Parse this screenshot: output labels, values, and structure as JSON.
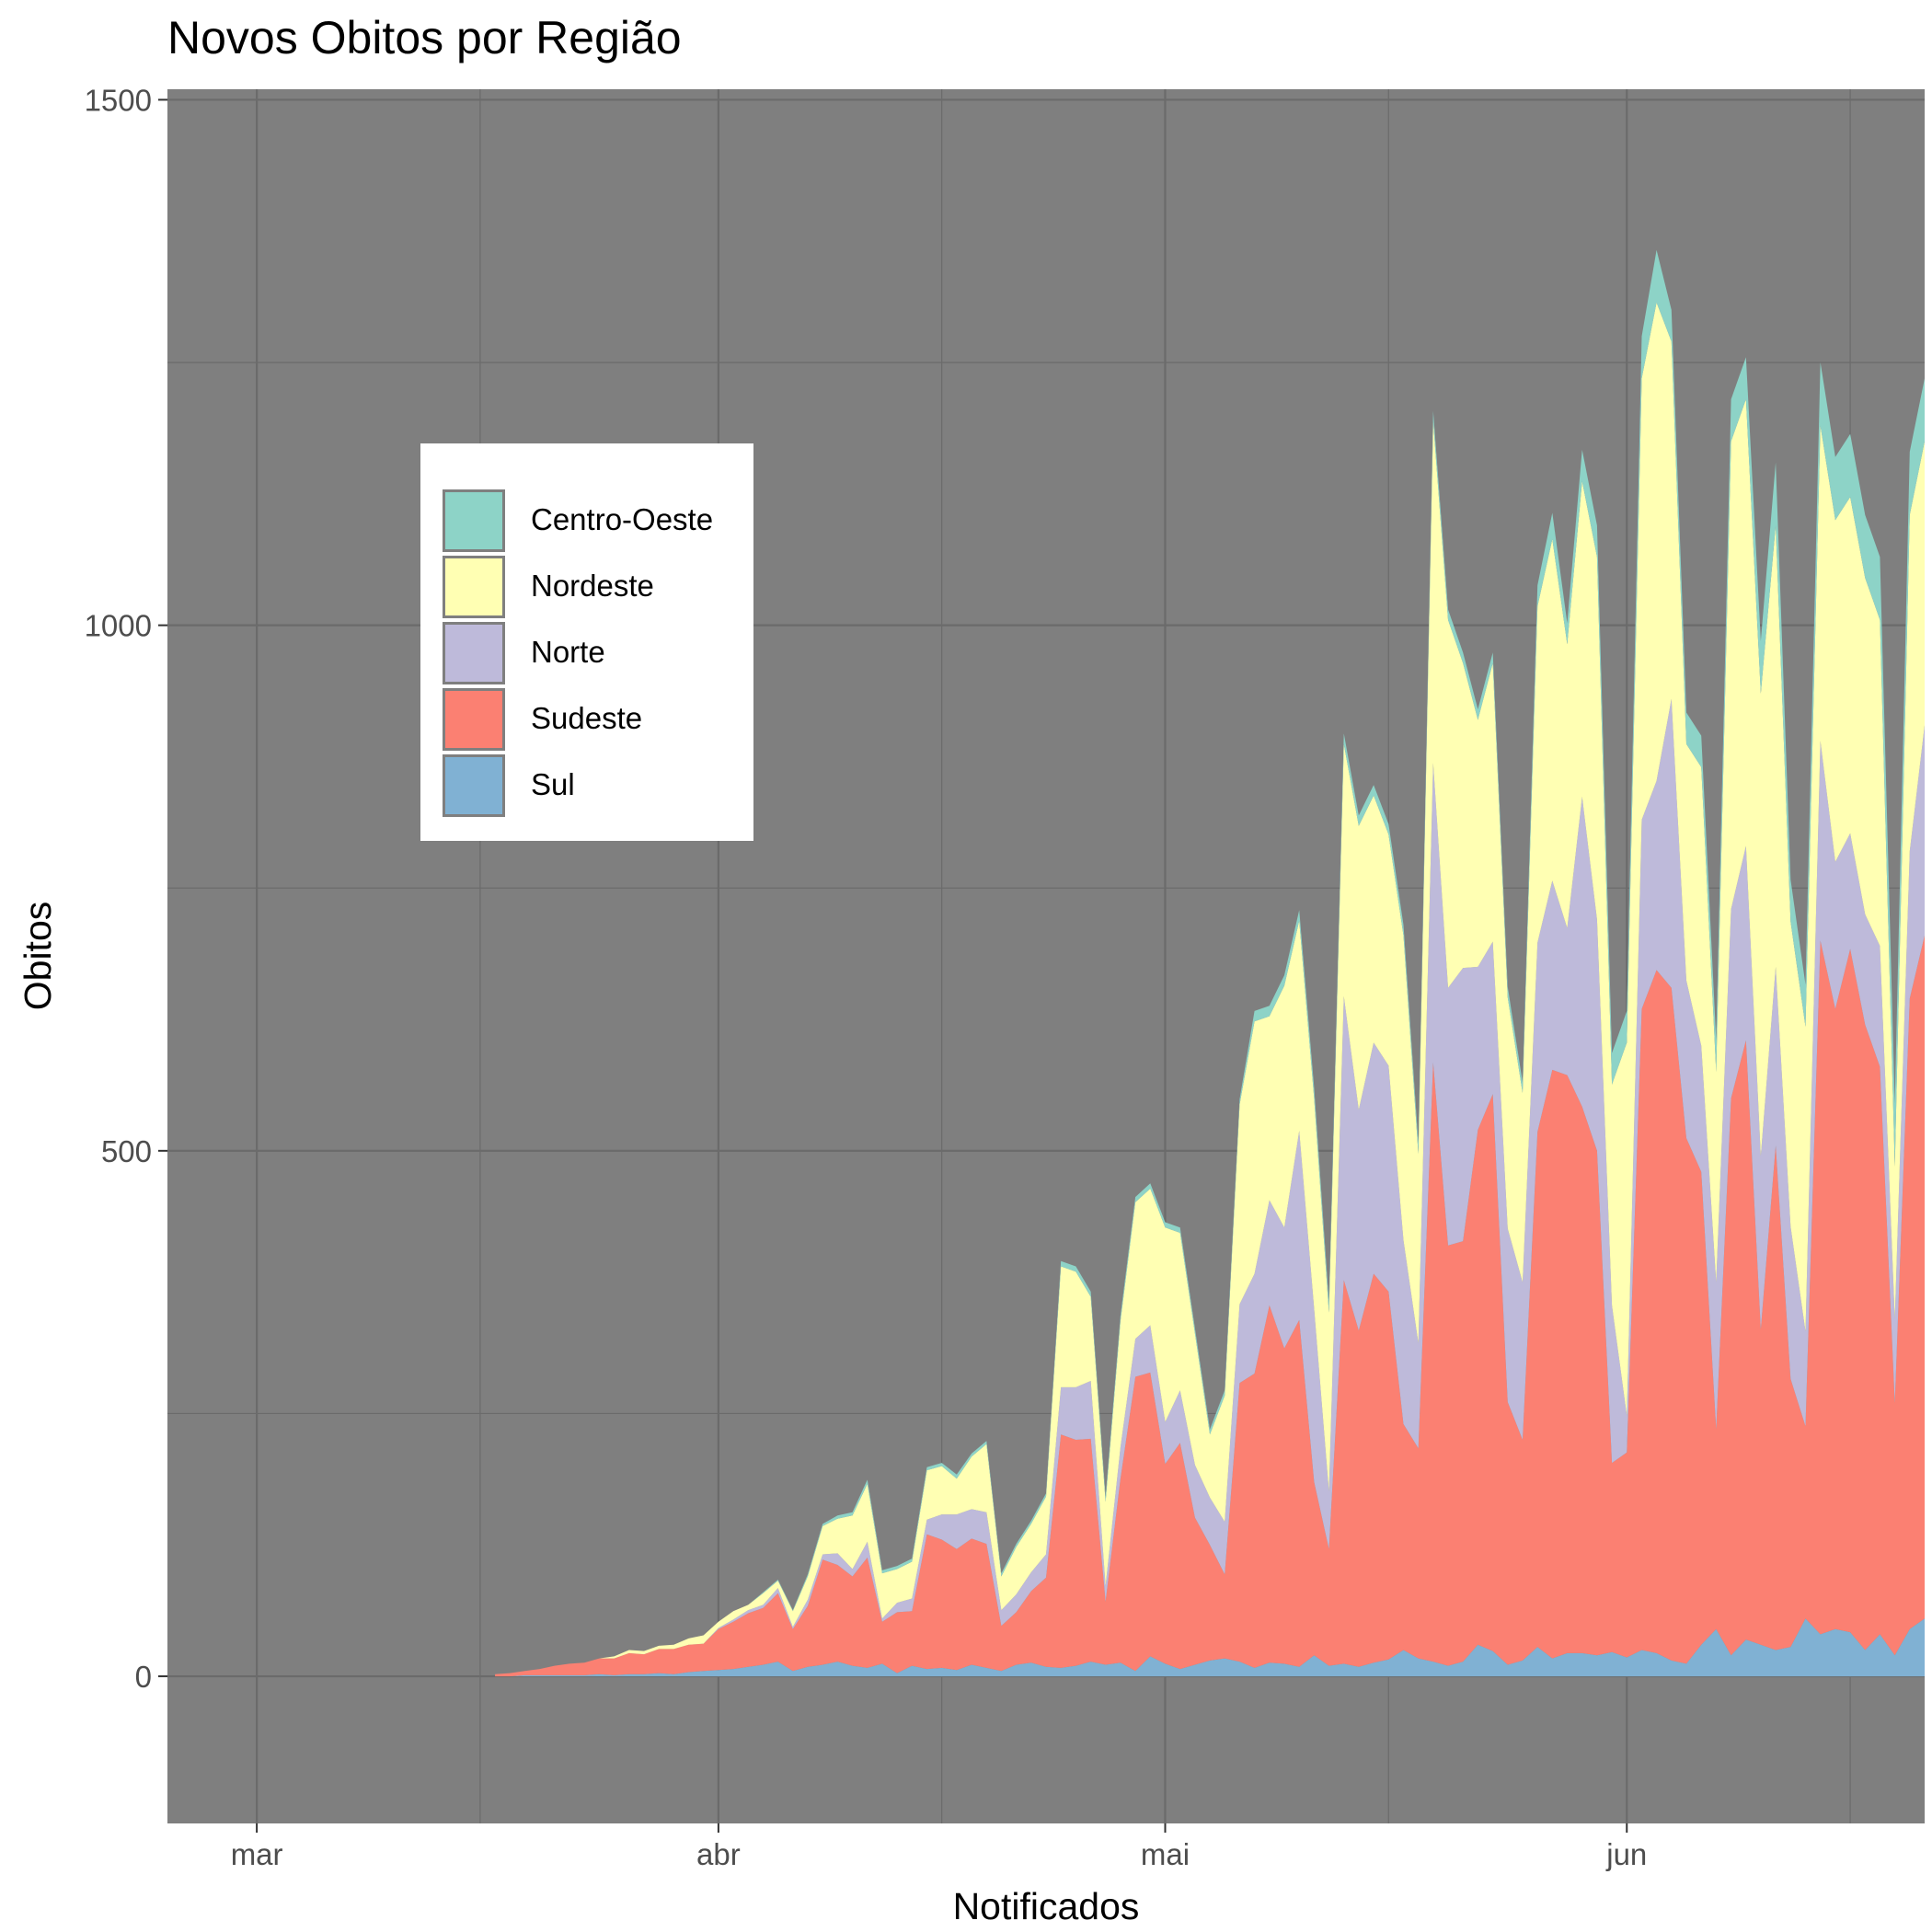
{
  "chart_data": {
    "type": "area",
    "stacked": true,
    "title": "Novos Obitos por Região",
    "xlabel": "Notificados",
    "ylabel": "Obitos",
    "ylim": [
      -140,
      1510
    ],
    "y_ticks": [
      0,
      500,
      1000,
      1500
    ],
    "y_minor_ticks": [
      250,
      750,
      1250
    ],
    "xlim": [
      "2020-02-24",
      "2020-06-21"
    ],
    "x_ticks": [
      {
        "date": "2020-03-01",
        "label": "mar"
      },
      {
        "date": "2020-04-01",
        "label": "abr"
      },
      {
        "date": "2020-05-01",
        "label": "mai"
      },
      {
        "date": "2020-06-01",
        "label": "jun"
      }
    ],
    "x_minor_ticks": [
      "2020-03-16",
      "2020-04-16",
      "2020-05-16",
      "2020-06-16"
    ],
    "grid": true,
    "panel_background": "#7f7f7f",
    "grid_color": "#6b6b6b",
    "legend_position": "top-left",
    "dates": [
      "2020-03-17",
      "2020-03-18",
      "2020-03-19",
      "2020-03-20",
      "2020-03-21",
      "2020-03-22",
      "2020-03-23",
      "2020-03-24",
      "2020-03-25",
      "2020-03-26",
      "2020-03-27",
      "2020-03-28",
      "2020-03-29",
      "2020-03-30",
      "2020-03-31",
      "2020-04-01",
      "2020-04-02",
      "2020-04-03",
      "2020-04-04",
      "2020-04-05",
      "2020-04-06",
      "2020-04-07",
      "2020-04-08",
      "2020-04-09",
      "2020-04-10",
      "2020-04-11",
      "2020-04-12",
      "2020-04-13",
      "2020-04-14",
      "2020-04-15",
      "2020-04-16",
      "2020-04-17",
      "2020-04-18",
      "2020-04-19",
      "2020-04-20",
      "2020-04-21",
      "2020-04-22",
      "2020-04-23",
      "2020-04-24",
      "2020-04-25",
      "2020-04-26",
      "2020-04-27",
      "2020-04-28",
      "2020-04-29",
      "2020-04-30",
      "2020-05-01",
      "2020-05-02",
      "2020-05-03",
      "2020-05-04",
      "2020-05-05",
      "2020-05-06",
      "2020-05-07",
      "2020-05-08",
      "2020-05-09",
      "2020-05-10",
      "2020-05-11",
      "2020-05-12",
      "2020-05-13",
      "2020-05-14",
      "2020-05-15",
      "2020-05-16",
      "2020-05-17",
      "2020-05-18",
      "2020-05-19",
      "2020-05-20",
      "2020-05-21",
      "2020-05-22",
      "2020-05-23",
      "2020-05-24",
      "2020-05-25",
      "2020-05-26",
      "2020-05-27",
      "2020-05-28",
      "2020-05-29",
      "2020-05-30",
      "2020-05-31",
      "2020-06-01",
      "2020-06-02",
      "2020-06-03",
      "2020-06-04",
      "2020-06-05",
      "2020-06-06",
      "2020-06-07",
      "2020-06-08",
      "2020-06-09",
      "2020-06-10",
      "2020-06-11",
      "2020-06-12",
      "2020-06-13",
      "2020-06-14",
      "2020-06-15",
      "2020-06-16",
      "2020-06-17",
      "2020-06-18",
      "2020-06-19",
      "2020-06-20",
      "2020-06-21"
    ],
    "series": [
      {
        "name": "Sul",
        "color": "#80b1d3",
        "values": [
          0,
          0,
          1,
          1,
          1,
          1,
          1,
          2,
          1,
          2,
          2,
          3,
          2,
          4,
          5,
          6,
          7,
          9,
          11,
          14,
          5,
          9,
          11,
          14,
          10,
          8,
          12,
          3,
          10,
          7,
          8,
          6,
          11,
          8,
          5,
          11,
          13,
          9,
          8,
          10,
          14,
          11,
          13,
          5,
          19,
          12,
          7,
          11,
          15,
          17,
          14,
          8,
          13,
          12,
          9,
          20,
          10,
          12,
          9,
          13,
          16,
          25,
          17,
          14,
          10,
          14,
          30,
          24,
          11,
          15,
          28,
          17,
          22,
          22,
          20,
          23,
          18,
          25,
          22,
          15,
          12,
          30,
          45,
          20,
          35,
          30,
          25,
          28,
          55,
          40,
          45,
          42,
          25,
          40,
          20,
          45,
          55
        ]
      },
      {
        "name": "Sudeste",
        "color": "#fb8072",
        "values": [
          2,
          3,
          4,
          6,
          9,
          11,
          12,
          15,
          16,
          20,
          19,
          23,
          24,
          26,
          26,
          39,
          45,
          51,
          54,
          65,
          40,
          58,
          100,
          92,
          85,
          105,
          40,
          58,
          52,
          128,
          122,
          115,
          120,
          118,
          43,
          50,
          68,
          85,
          222,
          215,
          212,
          60,
          175,
          280,
          270,
          190,
          215,
          140,
          110,
          80,
          265,
          280,
          340,
          300,
          330,
          165,
          111,
          365,
          320,
          370,
          350,
          215,
          200,
          570,
          400,
          400,
          490,
          530,
          250,
          210,
          490,
          560,
          550,
          520,
          480,
          180,
          195,
          610,
          650,
          640,
          500,
          450,
          190,
          530,
          570,
          300,
          480,
          255,
          183,
          660,
          590,
          650,
          595,
          540,
          240,
          600,
          650
        ]
      },
      {
        "name": "Norte",
        "color": "#bebada",
        "values": [
          0,
          0,
          0,
          0,
          0,
          0,
          0,
          0,
          0,
          0,
          0,
          0,
          0,
          0,
          0,
          1,
          2,
          3,
          3,
          5,
          2,
          6,
          5,
          11,
          7,
          15,
          3,
          9,
          12,
          14,
          24,
          33,
          28,
          30,
          15,
          17,
          18,
          22,
          45,
          50,
          55,
          15,
          30,
          36,
          45,
          40,
          50,
          50,
          45,
          50,
          75,
          95,
          100,
          115,
          180,
          165,
          55,
          270,
          210,
          220,
          215,
          175,
          100,
          285,
          245,
          260,
          155,
          145,
          165,
          150,
          180,
          180,
          140,
          295,
          220,
          150,
          35,
          180,
          180,
          275,
          150,
          120,
          140,
          180,
          185,
          165,
          170,
          145,
          90,
          190,
          140,
          110,
          105,
          115,
          80,
          140,
          200
        ]
      },
      {
        "name": "Nordeste",
        "color": "#ffffb3",
        "values": [
          0,
          0,
          0,
          0,
          0,
          0,
          0,
          0,
          2,
          3,
          3,
          3,
          4,
          6,
          8,
          6,
          8,
          5,
          11,
          7,
          15,
          22,
          27,
          33,
          51,
          55,
          43,
          32,
          35,
          47,
          46,
          34,
          50,
          65,
          32,
          45,
          46,
          55,
          115,
          110,
          80,
          80,
          120,
          130,
          130,
          185,
          150,
          125,
          60,
          120,
          190,
          240,
          175,
          230,
          200,
          200,
          170,
          240,
          270,
          235,
          220,
          290,
          180,
          325,
          350,
          290,
          235,
          265,
          220,
          180,
          320,
          325,
          270,
          300,
          345,
          210,
          355,
          420,
          455,
          340,
          225,
          265,
          200,
          445,
          425,
          440,
          420,
          290,
          290,
          300,
          325,
          320,
          320,
          310,
          145,
          320,
          270
        ]
      },
      {
        "name": "Centro-Oeste",
        "color": "#8dd3c7",
        "values": [
          0,
          0,
          0,
          0,
          0,
          0,
          0,
          0,
          0,
          0,
          0,
          0,
          0,
          0,
          0,
          0,
          0,
          0,
          1,
          1,
          1,
          2,
          2,
          3,
          3,
          4,
          3,
          3,
          3,
          3,
          3,
          4,
          3,
          3,
          3,
          3,
          3,
          3,
          5,
          5,
          5,
          5,
          5,
          5,
          5,
          5,
          5,
          5,
          5,
          5,
          5,
          10,
          10,
          10,
          10,
          10,
          10,
          10,
          10,
          10,
          10,
          10,
          10,
          10,
          10,
          10,
          10,
          10,
          10,
          10,
          20,
          25,
          20,
          30,
          30,
          30,
          30,
          40,
          50,
          30,
          30,
          30,
          30,
          40,
          40,
          50,
          60,
          40,
          40,
          60,
          60,
          60,
          60,
          60,
          60,
          60,
          60
        ]
      }
    ],
    "legend": [
      {
        "name": "Centro-Oeste",
        "color": "#8dd3c7"
      },
      {
        "name": "Nordeste",
        "color": "#ffffb3"
      },
      {
        "name": "Norte",
        "color": "#bebada"
      },
      {
        "name": "Sudeste",
        "color": "#fb8072"
      },
      {
        "name": "Sul",
        "color": "#80b1d3"
      }
    ]
  }
}
